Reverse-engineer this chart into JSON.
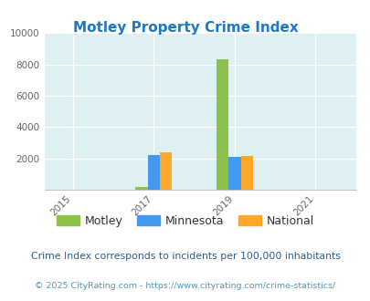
{
  "title": "Motley Property Crime Index",
  "title_color": "#1E78C8",
  "years": [
    2015,
    2017,
    2019,
    2021
  ],
  "bar_data": {
    "2017": {
      "Motley": 150,
      "Minnesota": 2200,
      "National": 2400
    },
    "2019": {
      "Motley": 8300,
      "Minnesota": 2100,
      "National": 2150
    }
  },
  "colors": {
    "Motley": "#8BC34A",
    "Minnesota": "#4499EE",
    "National": "#FFA726"
  },
  "ylim": [
    0,
    10000
  ],
  "yticks": [
    0,
    2000,
    4000,
    6000,
    8000,
    10000
  ],
  "xlim": [
    2014.3,
    2022.0
  ],
  "xticks": [
    2015,
    2017,
    2019,
    2021
  ],
  "bg_color": "#DFF0F3",
  "grid_color": "#FFFFFF",
  "bar_width": 0.3,
  "legend_labels": [
    "Motley",
    "Minnesota",
    "National"
  ],
  "footnote1": "Crime Index corresponds to incidents per 100,000 inhabitants",
  "footnote2": "© 2025 CityRating.com - https://www.cityrating.com/crime-statistics/",
  "footnote1_color": "#2D5E8A",
  "footnote2_color": "#5599BB"
}
